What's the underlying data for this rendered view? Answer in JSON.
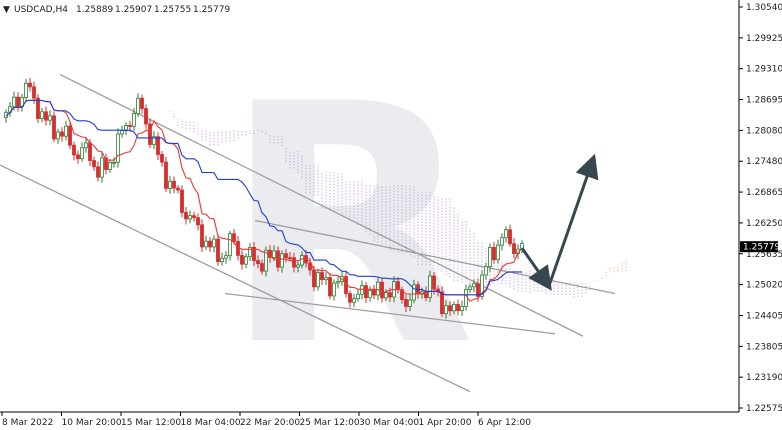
{
  "chart_data": {
    "type": "candlestick",
    "header": {
      "arrow": "▼",
      "symbol": "USDCAD,H4",
      "open": "1.25889",
      "high": "1.25907",
      "low": "1.25755",
      "close": "1.25779"
    },
    "watermark": "R",
    "current_price": "1.25779",
    "y_ticks": [
      "1.30540",
      "1.29925",
      "1.29310",
      "1.28695",
      "1.28080",
      "1.27480",
      "1.26865",
      "1.26250",
      "1.25635",
      "1.25020",
      "1.24405",
      "1.23805",
      "1.23190",
      "1.22575"
    ],
    "y_range": [
      1.22575,
      1.3054
    ],
    "x_ticks": [
      "8 Mar 2022",
      "10 Mar 20:00",
      "15 Mar 12:00",
      "18 Mar 04:00",
      "22 Mar 20:00",
      "25 Mar 12:00",
      "30 Mar 04:00",
      "1 Apr 20:00",
      "6 Apr 12:00"
    ],
    "close_path": [
      1.2835,
      1.287,
      1.2895,
      1.286,
      1.282,
      1.281,
      1.279,
      1.276,
      1.277,
      1.272,
      1.2745,
      1.279,
      1.2835,
      1.286,
      1.28,
      1.274,
      1.27,
      1.266,
      1.263,
      1.26,
      1.257,
      1.256,
      1.259,
      1.255,
      1.256,
      1.254,
      1.257,
      1.2545,
      1.2555,
      1.254,
      1.252,
      1.25,
      1.251,
      1.249,
      1.247,
      1.25,
      1.248,
      1.2495,
      1.2485,
      1.247,
      1.249,
      1.25,
      1.248,
      1.244,
      1.247,
      1.249,
      1.251,
      1.256,
      1.26,
      1.258,
      1.2578
    ],
    "colors": {
      "bull": "#2e7d32",
      "bear": "#d32f2f",
      "tenkan": "#e53935",
      "kijun": "#1e3fd8",
      "kumo_orange": "#f0a060",
      "kumo_violet": "#b890c8",
      "trendline": "#9e9e9e",
      "forecast_arrow": "#37474f",
      "price_tag": "#000000",
      "watermark": "#d2d7e0"
    }
  }
}
